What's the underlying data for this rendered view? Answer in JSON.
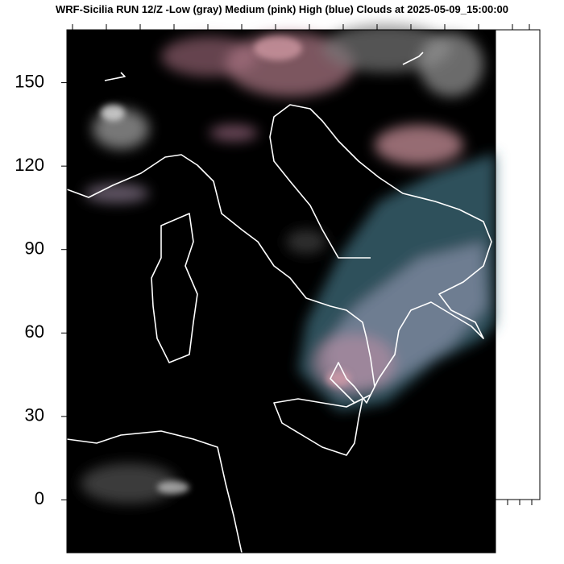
{
  "chart_data": {
    "type": "map",
    "title": "WRF-Sicilia RUN 12/Z -Low (gray) Medium (pink) High (blue) Clouds at 2025-05-09_15:00:00",
    "ylim": [
      -19,
      169
    ],
    "yticks": [
      0,
      30,
      60,
      90,
      120,
      150
    ]
  }
}
